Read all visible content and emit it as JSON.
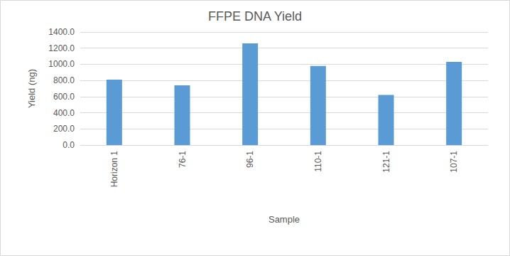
{
  "chart_data": {
    "type": "bar",
    "title": "FFPE DNA Yield",
    "x_label": "Sample",
    "y_label": "Yield (ng)",
    "categories": [
      "Horizon 1",
      "76-1",
      "96-1",
      "110-1",
      "121-1",
      "107-1"
    ],
    "values": [
      810,
      740,
      1260,
      980,
      620,
      1030
    ],
    "color": "#5b9bd5",
    "ylim": [
      0,
      1400
    ],
    "yticks": [
      {
        "value": 0,
        "label": "0.0"
      },
      {
        "value": 200,
        "label": "200.0"
      },
      {
        "value": 400,
        "label": "400.0"
      },
      {
        "value": 600,
        "label": "600.0"
      },
      {
        "value": 800,
        "label": "800.0"
      },
      {
        "value": 1000,
        "label": "1000.0"
      },
      {
        "value": 1200,
        "label": "1200.0"
      },
      {
        "value": 1400,
        "label": "1400.0"
      }
    ],
    "grid": true
  }
}
